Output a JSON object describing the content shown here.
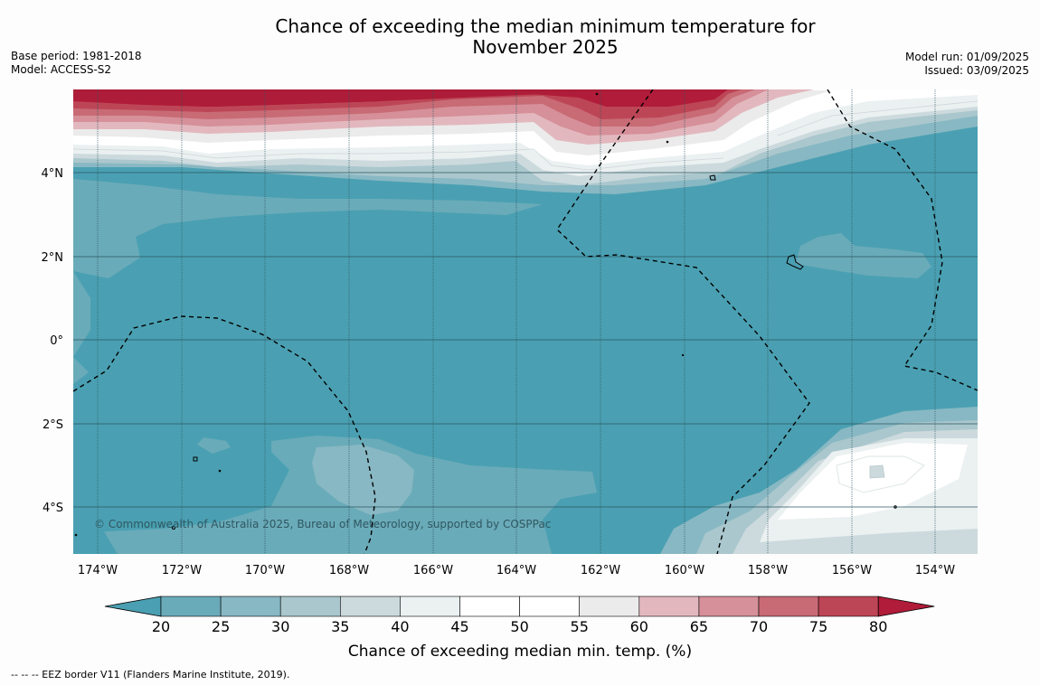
{
  "title_line1": "Chance of exceeding the median minimum temperature for",
  "title_line2": "November 2025",
  "base_period": "Base period: 1981-2018",
  "model": "Model: ACCESS-S2",
  "model_run": "Model run: 01/09/2025",
  "issued": "Issued: 03/09/2025",
  "copyright": "© Commonwealth of Australia 2025, Bureau of Meteorology, supported by COSPPac",
  "lon_labels": [
    "174°W",
    "172°W",
    "170°W",
    "168°W",
    "166°W",
    "164°W",
    "162°W",
    "160°W",
    "158°W",
    "156°W",
    "154°W"
  ],
  "lat_labels": [
    "4°N",
    "2°N",
    "0°",
    "2°S",
    "4°S"
  ],
  "colorbar": {
    "ticks": [
      "20",
      "25",
      "30",
      "35",
      "40",
      "45",
      "50",
      "55",
      "60",
      "65",
      "70",
      "75",
      "80"
    ],
    "colors": [
      "#4aa0b2",
      "#6aabb9",
      "#88b8c3",
      "#aac7cd",
      "#ccdadd",
      "#ebf0f1",
      "#ffffff",
      "#ffffff",
      "#ebebeb",
      "#e2b8be",
      "#d6909a",
      "#c86b75",
      "#bd4656",
      "#b01c39"
    ],
    "title": "Chance of exceeding median min. temp. (%)"
  },
  "footnote": "--  --  -- EEZ border V11 (Flanders Marine Institute, 2019)."
}
